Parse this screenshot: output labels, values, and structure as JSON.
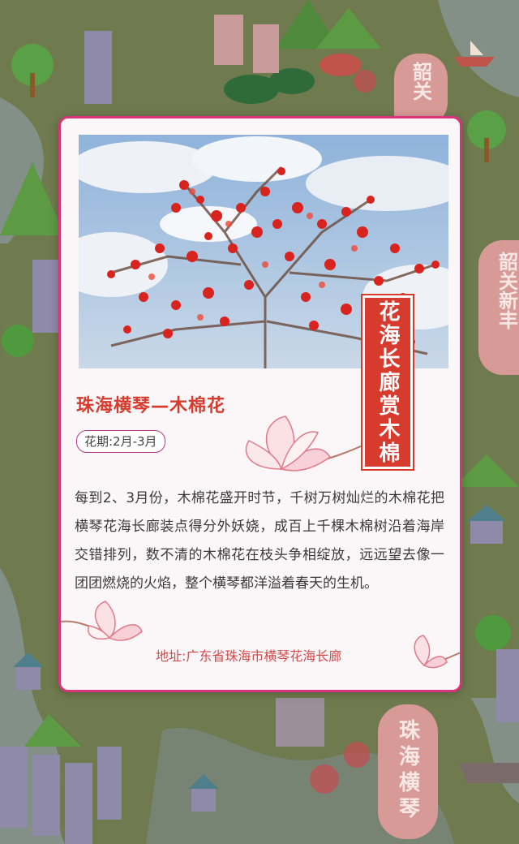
{
  "card": {
    "vertical_banner": "花海长廊赏木棉",
    "title": "珠海横琴—木棉花",
    "bloom_badge": "花期:2月-3月",
    "description": "每到2、3月份，木棉花盛开时节，千树万树灿烂的木棉花把横琴花海长廊装点得分外妖娆，成百上千棵木棉树沿着海岸交错排列，数不清的木棉花在枝头争相绽放，远远望去像一团团燃烧的火焰，整个横琴都洋溢着春天的生机。",
    "address": "地址:广东省珠海市横琴花海长廊"
  },
  "map_signs": {
    "top_right": "韶关",
    "mid_right": "韶关新丰",
    "bottom_right": "珠海横琴"
  },
  "colors": {
    "accent": "#d63b2e",
    "border": "#d8347a",
    "map_bg": "#6f7a4e"
  }
}
